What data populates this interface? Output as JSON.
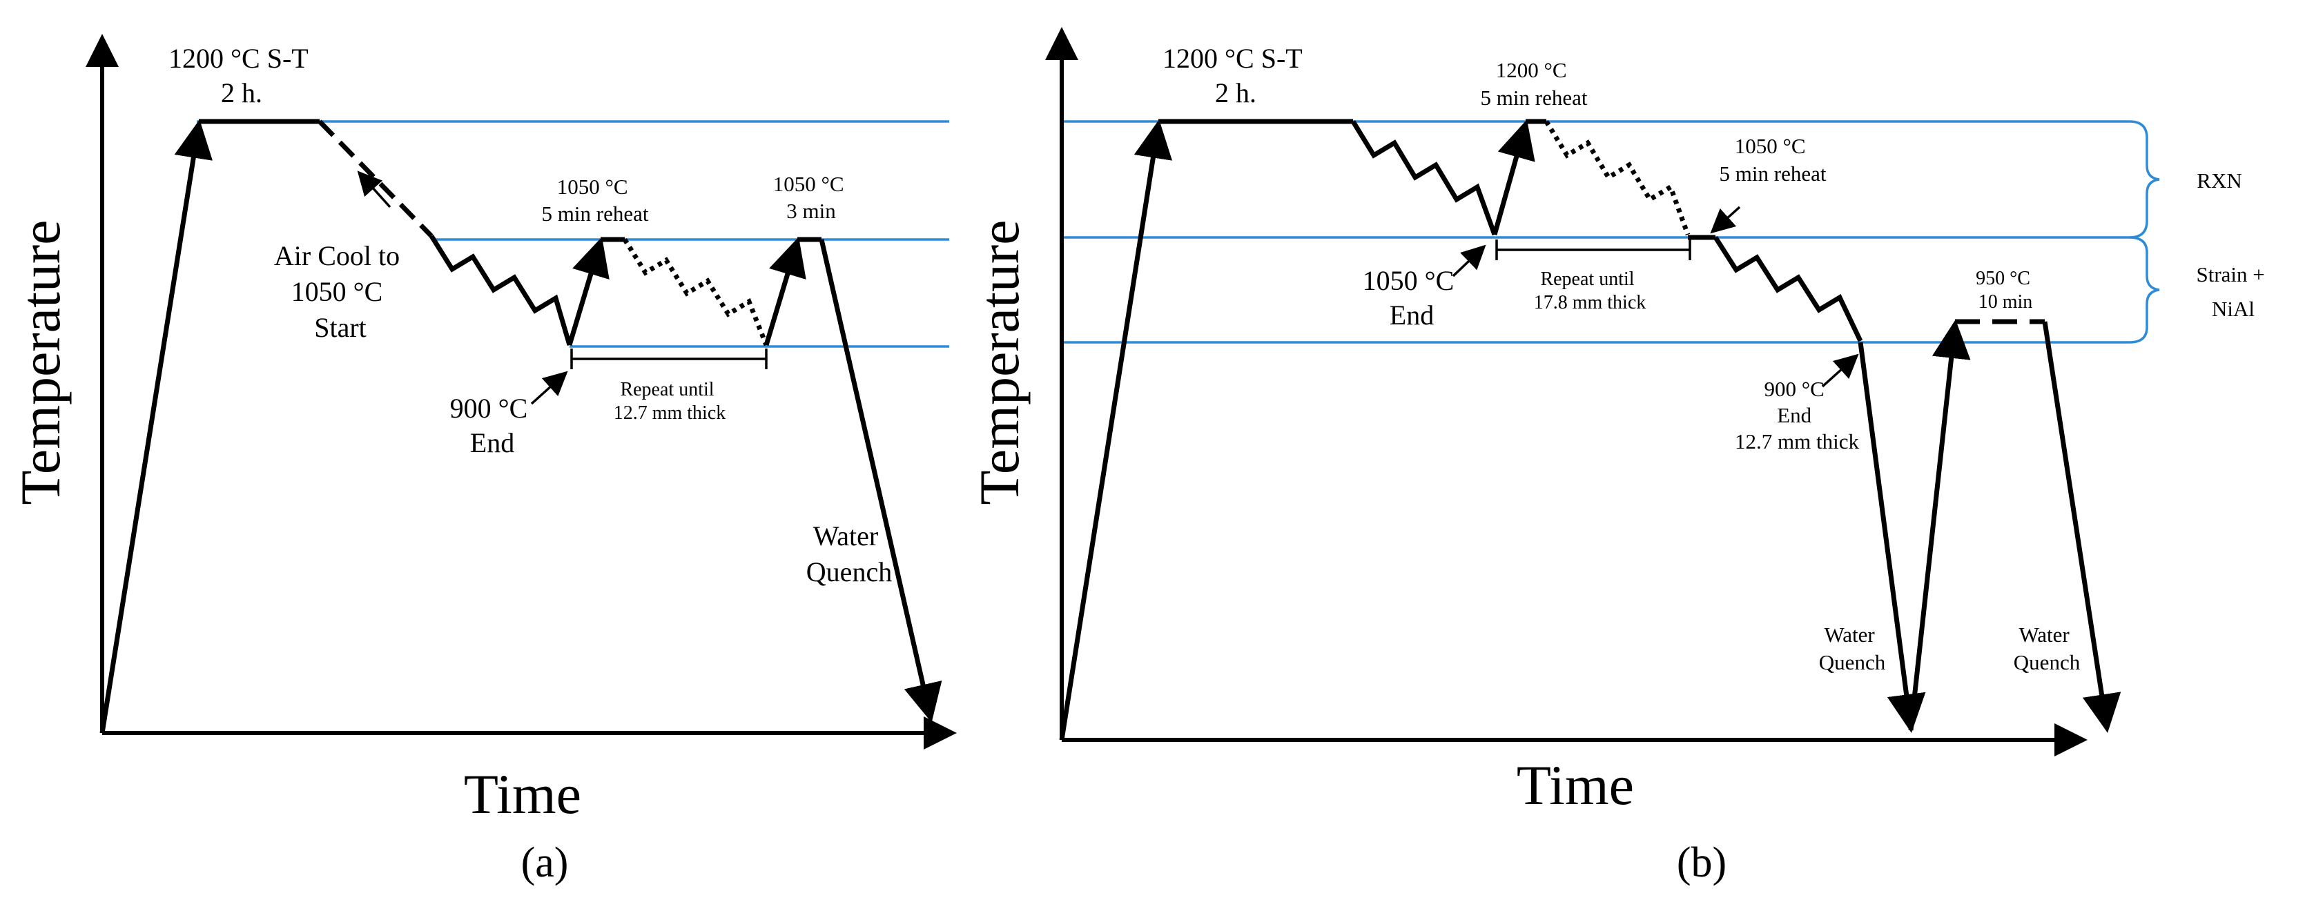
{
  "panel_a": {
    "label": "(a)",
    "x_axis": "Time",
    "y_axis": "Temperature",
    "solution_treat": [
      "1200 °C S-T",
      "2 h."
    ],
    "air_cool": [
      "Air Cool to",
      "1050 °C",
      "Start"
    ],
    "end_900": [
      "900 °C",
      "End"
    ],
    "reheat": [
      "1050 °C",
      "5 min reheat"
    ],
    "repeat": [
      "Repeat until",
      "12.7 mm thick"
    ],
    "final_hold": [
      "1050 °C",
      "3 min"
    ],
    "quench": [
      "Water",
      "Quench"
    ]
  },
  "panel_b": {
    "label": "(b)",
    "x_axis": "Time",
    "y_axis": "Temperature",
    "solution_treat": [
      "1200 °C S-T",
      "2 h."
    ],
    "reheat_1200": [
      "1200 °C",
      "5 min reheat"
    ],
    "reheat_1050": [
      "1050 °C",
      "5 min reheat"
    ],
    "end_1050": [
      "1050 °C",
      "End"
    ],
    "repeat": [
      "Repeat until",
      "17.8 mm thick"
    ],
    "end_900": [
      "900 °C",
      "End",
      "12.7 mm thick"
    ],
    "hold_950": [
      "950 °C",
      "10 min"
    ],
    "quench_1": [
      "Water",
      "Quench"
    ],
    "quench_2": [
      "Water",
      "Quench"
    ],
    "region_rxn": "RXN",
    "region_strain": [
      "Strain +",
      "NiAl"
    ]
  }
}
